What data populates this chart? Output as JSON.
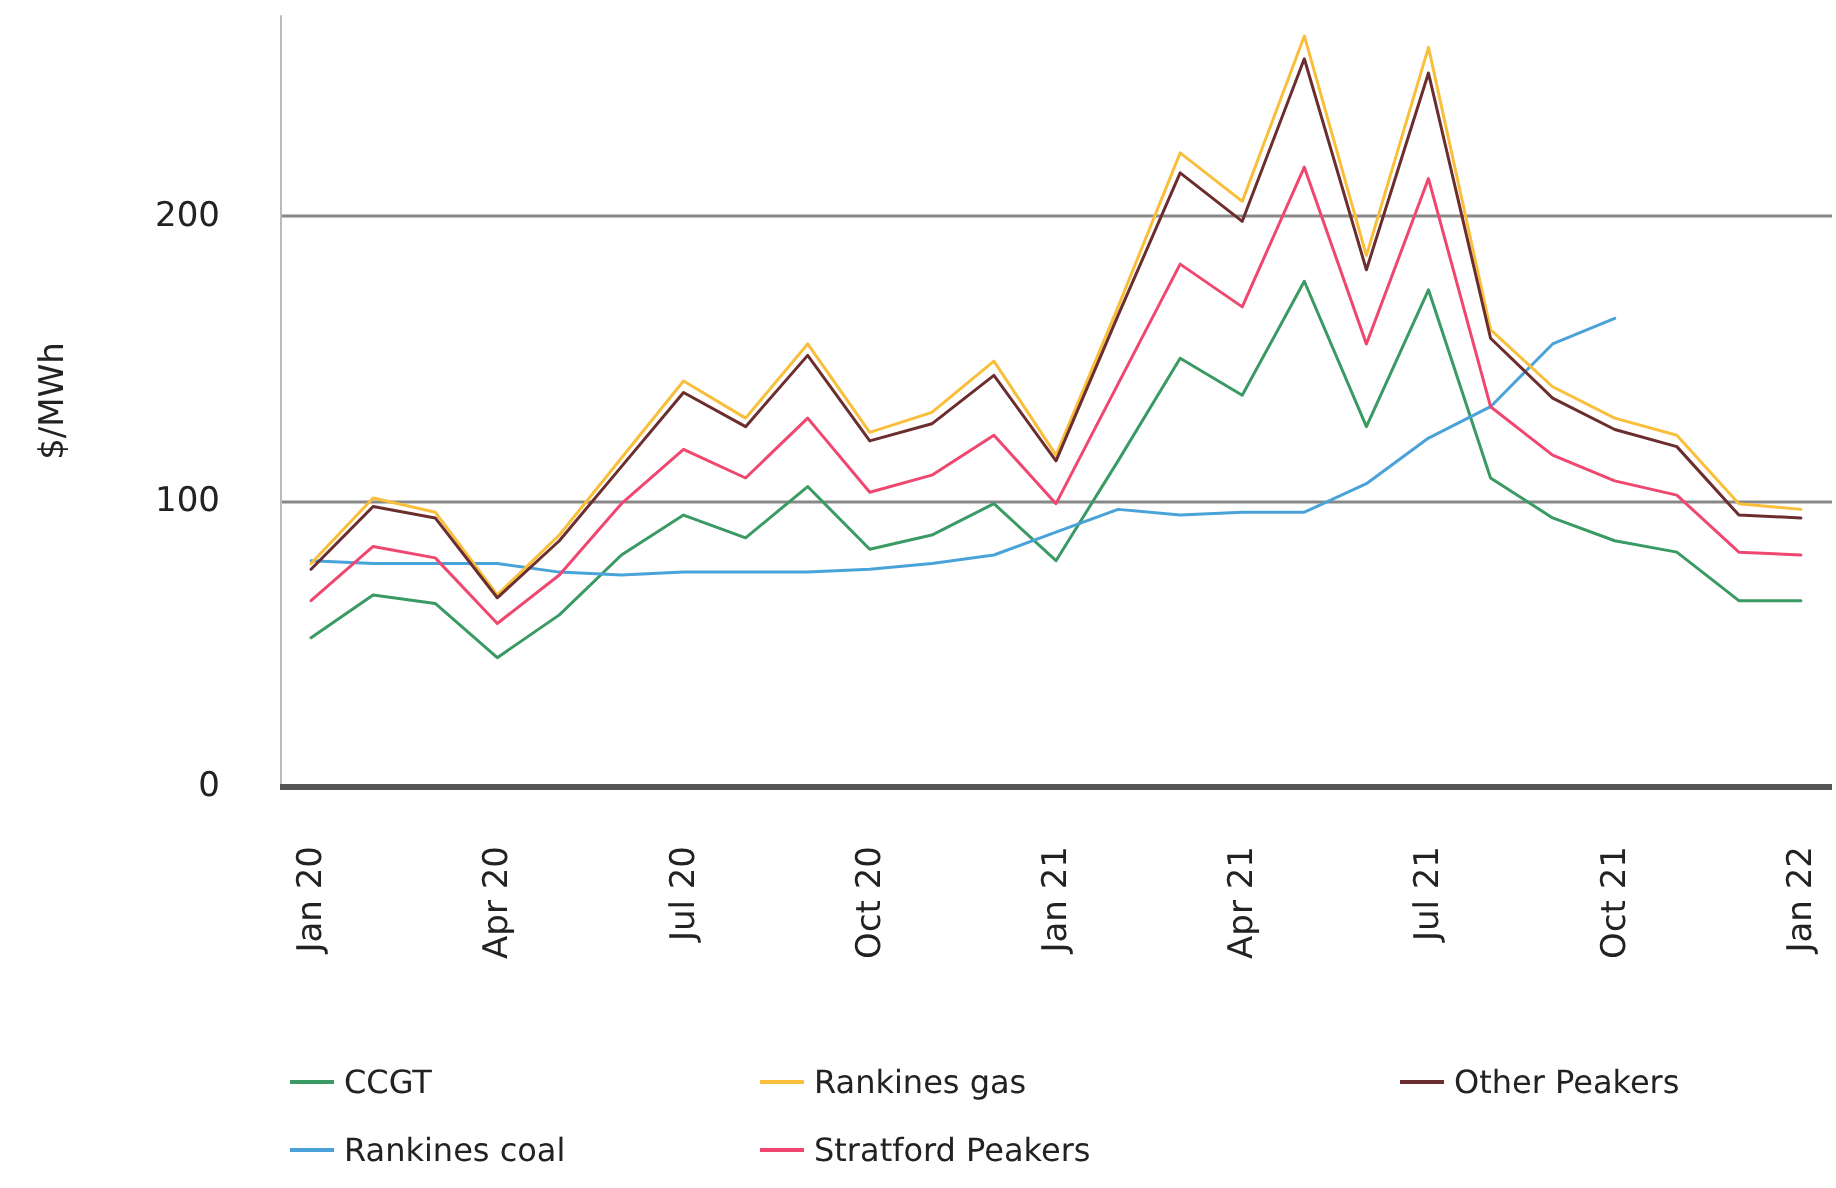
{
  "chart_data": {
    "type": "line",
    "ylabel": "$/MWh",
    "categories": [
      "Jan 20",
      null,
      null,
      "Apr 20",
      null,
      null,
      "Jul 20",
      null,
      null,
      "Oct 20",
      null,
      null,
      "Jan 21",
      null,
      null,
      "Apr 21",
      null,
      null,
      "Jul 21",
      null,
      null,
      "Oct 21",
      null,
      null,
      "Jan 22"
    ],
    "series": [
      {
        "name": "CCGT",
        "color": "#3a9a63",
        "values": [
          52,
          67,
          64,
          45,
          60,
          81,
          95,
          87,
          105,
          83,
          88,
          99,
          79,
          114,
          150,
          137,
          177,
          126,
          174,
          108,
          94,
          86,
          82,
          65,
          65
        ]
      },
      {
        "name": "Rankines coal",
        "color": "#4aa3d8",
        "values": [
          79,
          78,
          78,
          78,
          75,
          74,
          75,
          75,
          75,
          76,
          78,
          81,
          89,
          97,
          95,
          96,
          96,
          106,
          122,
          133,
          155,
          164,
          null,
          null,
          null
        ]
      },
      {
        "name": "Rankines gas",
        "color": "#f9bf3b",
        "values": [
          78,
          101,
          96,
          67,
          88,
          115,
          142,
          129,
          155,
          124,
          131,
          149,
          116,
          168,
          222,
          205,
          263,
          186,
          259,
          160,
          140,
          129,
          123,
          99,
          97
        ]
      },
      {
        "name": "Stratford Peakers",
        "color": "#ef476f",
        "values": [
          65,
          84,
          80,
          57,
          74,
          99,
          118,
          108,
          129,
          103,
          109,
          123,
          99,
          141,
          183,
          168,
          217,
          155,
          213,
          133,
          116,
          107,
          102,
          82,
          81
        ]
      },
      {
        "name": "Other Peakers",
        "color": "#6b2d2d",
        "values": [
          76,
          98,
          94,
          66,
          86,
          112,
          138,
          126,
          151,
          121,
          127,
          144,
          114,
          165,
          215,
          198,
          255,
          181,
          250,
          157,
          136,
          125,
          119,
          95,
          94
        ]
      }
    ],
    "ylim": [
      0,
      270
    ],
    "yticks": [
      0,
      100,
      200
    ],
    "grid": "y",
    "legend": "bottom",
    "marker": "none",
    "line_style": "solid"
  }
}
